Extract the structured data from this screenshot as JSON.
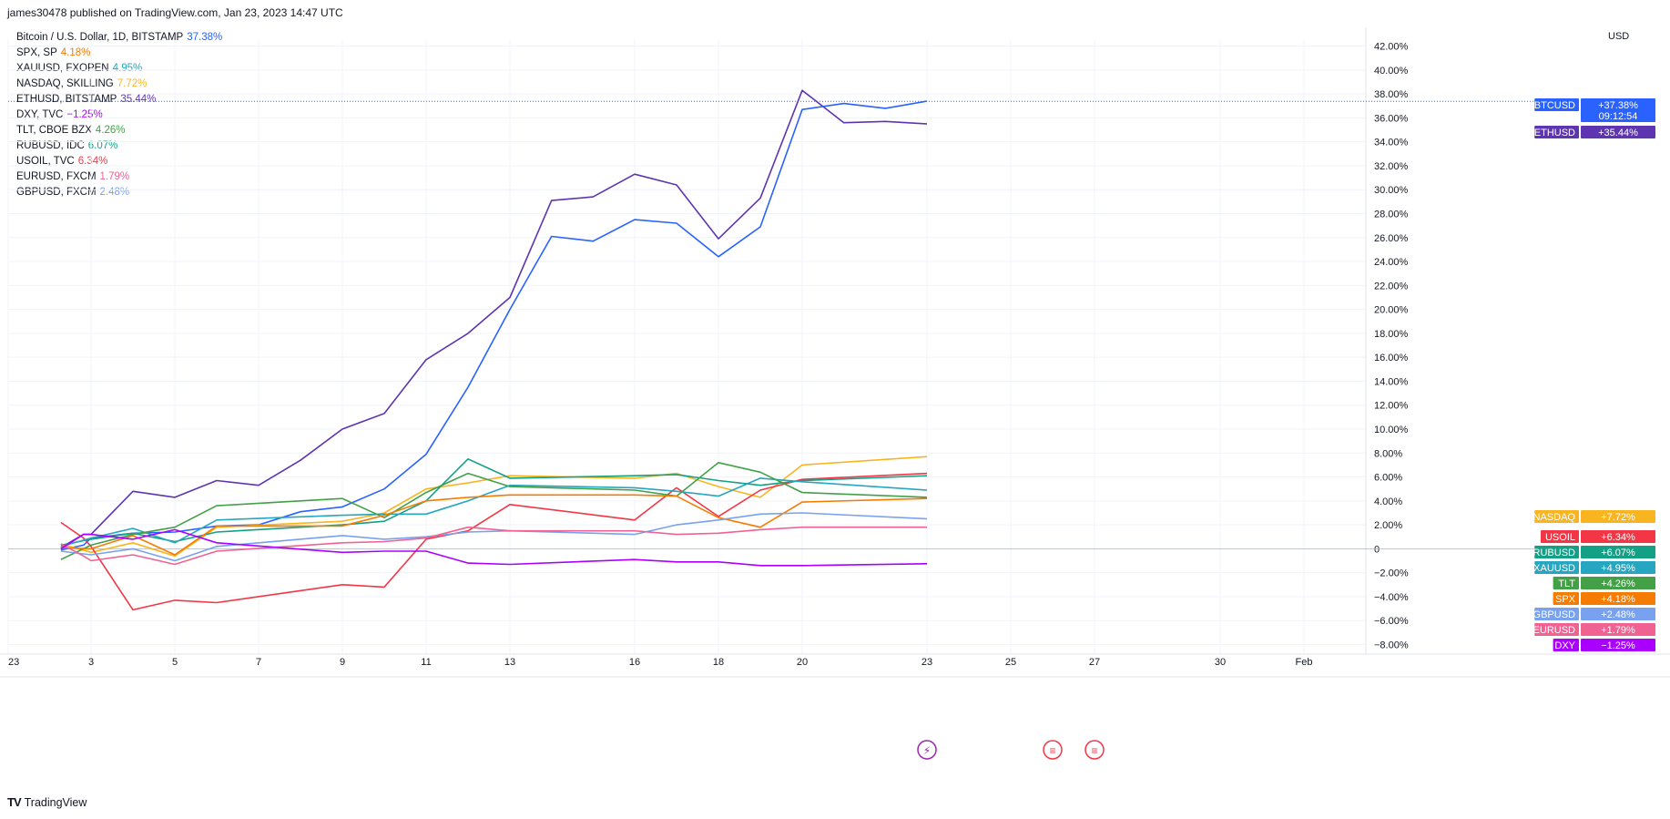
{
  "header": {
    "published": "james30478 published on TradingView.com, Jan 23, 2023 14:47 UTC"
  },
  "currency": "USD",
  "footer": {
    "brand": "TradingView",
    "logo": "TV"
  },
  "legend": [
    {
      "label": "Bitcoin / U.S. Dollar, 1D, BITSTAMP",
      "value": "37.38%",
      "color": "#2962ff"
    },
    {
      "label": "SPX, SP",
      "value": "4.18%",
      "color": "#f57c00"
    },
    {
      "label": "XAUUSD, FXOPEN",
      "value": "4.95%",
      "color": "#26a6c0"
    },
    {
      "label": "NASDAQ, SKILLING",
      "value": "7.72%",
      "color": "#f9b520"
    },
    {
      "label": "ETHUSD, BITSTAMP",
      "value": "35.44%",
      "color": "#5e35b1"
    },
    {
      "label": "DXY, TVC",
      "value": "−1.25%",
      "color": "#aa00ff"
    },
    {
      "label": "TLT, CBOE BZX",
      "value": "4.26%",
      "color": "#43a047"
    },
    {
      "label": "RUBUSD, IDC",
      "value": "6.07%",
      "color": "#14a085"
    },
    {
      "label": "USOIL, TVC",
      "value": "6.34%",
      "color": "#f23645"
    },
    {
      "label": "EURUSD, FXCM",
      "value": "1.79%",
      "color": "#f06292"
    },
    {
      "label": "GBPUSD, FXCM",
      "value": "2.48%",
      "color": "#78a1f0"
    }
  ],
  "chart_data": {
    "type": "line",
    "x": [
      "Dec 23",
      "Jan 3",
      "Jan 4",
      "Jan 5",
      "Jan 6",
      "Jan 9",
      "Jan 10",
      "Jan 11",
      "Jan 12",
      "Jan 13",
      "Jan 16",
      "Jan 17",
      "Jan 18",
      "Jan 19",
      "Jan 20",
      "Jan 23"
    ],
    "x_ticks": [
      "23",
      "3",
      "5",
      "7",
      "9",
      "11",
      "13",
      "16",
      "18",
      "20",
      "23",
      "25",
      "27",
      "30",
      "Feb"
    ],
    "y_ticks": [
      "−8.00%",
      "−6.00%",
      "−4.00%",
      "−2.00%",
      "0",
      "2.00%",
      "4.00%",
      "6.00%",
      "8.00%",
      "10.00%",
      "12.00%",
      "14.00%",
      "16.00%",
      "18.00%",
      "20.00%",
      "22.00%",
      "24.00%",
      "26.00%",
      "28.00%",
      "30.00%",
      "32.00%",
      "34.00%",
      "36.00%",
      "38.00%",
      "40.00%",
      "42.00%"
    ],
    "ylim": [
      -8.8,
      42.5
    ],
    "y_unit": "%",
    "series": [
      {
        "name": "ETHUSD",
        "color": "#5e35b1",
        "points": [
          [
            "Dec 30",
            0.1
          ],
          [
            "Jan 2",
            1.2
          ],
          [
            "Jan 3",
            1.2
          ],
          [
            "Jan 4",
            4.8
          ],
          [
            "Jan 5",
            4.3
          ],
          [
            "Jan 6",
            5.7
          ],
          [
            "Jan 7",
            5.3
          ],
          [
            "Jan 8",
            7.4
          ],
          [
            "Jan 9",
            10.0
          ],
          [
            "Jan 10",
            11.3
          ],
          [
            "Jan 11",
            15.8
          ],
          [
            "Jan 12",
            18.0
          ],
          [
            "Jan 13",
            21.0
          ],
          [
            "Jan 14",
            29.1
          ],
          [
            "Jan 15",
            29.4
          ],
          [
            "Jan 16",
            31.3
          ],
          [
            "Jan 17",
            30.4
          ],
          [
            "Jan 18",
            25.9
          ],
          [
            "Jan 19",
            29.3
          ],
          [
            "Jan 20",
            38.3
          ],
          [
            "Jan 21",
            35.6
          ],
          [
            "Jan 22",
            35.7
          ],
          [
            "Jan 23",
            35.5
          ]
        ]
      },
      {
        "name": "BTCUSD",
        "color": "#2962ff",
        "points": [
          [
            "Dec 30",
            -0.1
          ],
          [
            "Jan 2",
            0.3
          ],
          [
            "Jan 3",
            0.9
          ],
          [
            "Jan 4",
            1.3
          ],
          [
            "Jan 5",
            1.4
          ],
          [
            "Jan 6",
            1.9
          ],
          [
            "Jan 7",
            2.0
          ],
          [
            "Jan 8",
            3.1
          ],
          [
            "Jan 9",
            3.5
          ],
          [
            "Jan 10",
            5.0
          ],
          [
            "Jan 11",
            7.9
          ],
          [
            "Jan 12",
            13.5
          ],
          [
            "Jan 13",
            20.0
          ],
          [
            "Jan 14",
            26.1
          ],
          [
            "Jan 15",
            25.7
          ],
          [
            "Jan 16",
            27.5
          ],
          [
            "Jan 17",
            27.2
          ],
          [
            "Jan 18",
            24.4
          ],
          [
            "Jan 19",
            26.9
          ],
          [
            "Jan 20",
            36.7
          ],
          [
            "Jan 21",
            37.2
          ],
          [
            "Jan 22",
            36.8
          ],
          [
            "Jan 23",
            37.4
          ]
        ]
      },
      {
        "name": "NASDAQ",
        "color": "#f9b520",
        "points": [
          [
            "Dec 30",
            0.4
          ],
          [
            "Jan 3",
            -0.3
          ],
          [
            "Jan 4",
            0.5
          ],
          [
            "Jan 5",
            -0.6
          ],
          [
            "Jan 6",
            1.8
          ],
          [
            "Jan 9",
            2.3
          ],
          [
            "Jan 10",
            3.0
          ],
          [
            "Jan 11",
            5.0
          ],
          [
            "Jan 12",
            5.5
          ],
          [
            "Jan 13",
            6.1
          ],
          [
            "Jan 16",
            5.9
          ],
          [
            "Jan 17",
            6.3
          ],
          [
            "Jan 18",
            5.2
          ],
          [
            "Jan 19",
            4.3
          ],
          [
            "Jan 20",
            7.0
          ],
          [
            "Jan 23",
            7.7
          ]
        ]
      },
      {
        "name": "USOIL",
        "color": "#f23645",
        "points": [
          [
            "Dec 30",
            2.2
          ],
          [
            "Jan 2",
            0.9
          ],
          [
            "Jan 3",
            0.2
          ],
          [
            "Jan 4",
            -5.1
          ],
          [
            "Jan 5",
            -4.3
          ],
          [
            "Jan 6",
            -4.5
          ],
          [
            "Jan 9",
            -3.0
          ],
          [
            "Jan 10",
            -3.2
          ],
          [
            "Jan 11",
            0.8
          ],
          [
            "Jan 12",
            1.5
          ],
          [
            "Jan 13",
            3.7
          ],
          [
            "Jan 16",
            2.4
          ],
          [
            "Jan 17",
            5.1
          ],
          [
            "Jan 18",
            2.7
          ],
          [
            "Jan 19",
            4.9
          ],
          [
            "Jan 20",
            5.8
          ],
          [
            "Jan 23",
            6.3
          ]
        ]
      },
      {
        "name": "RUBUSD",
        "color": "#14a085",
        "points": [
          [
            "Dec 30",
            0.3
          ],
          [
            "Jan 3",
            0.8
          ],
          [
            "Jan 4",
            1.3
          ],
          [
            "Jan 5",
            0.6
          ],
          [
            "Jan 6",
            1.4
          ],
          [
            "Jan 9",
            2.0
          ],
          [
            "Jan 10",
            2.3
          ],
          [
            "Jan 11",
            4.0
          ],
          [
            "Jan 12",
            7.5
          ],
          [
            "Jan 13",
            5.9
          ],
          [
            "Jan 16",
            6.1
          ],
          [
            "Jan 17",
            6.2
          ],
          [
            "Jan 18",
            5.7
          ],
          [
            "Jan 19",
            5.3
          ],
          [
            "Jan 20",
            5.7
          ],
          [
            "Jan 23",
            6.1
          ]
        ]
      },
      {
        "name": "XAUUSD",
        "color": "#26a6c0",
        "points": [
          [
            "Dec 30",
            0.2
          ],
          [
            "Jan 3",
            0.9
          ],
          [
            "Jan 4",
            1.7
          ],
          [
            "Jan 5",
            0.5
          ],
          [
            "Jan 6",
            2.4
          ],
          [
            "Jan 9",
            2.8
          ],
          [
            "Jan 10",
            2.9
          ],
          [
            "Jan 11",
            2.9
          ],
          [
            "Jan 12",
            4.0
          ],
          [
            "Jan 13",
            5.3
          ],
          [
            "Jan 16",
            5.1
          ],
          [
            "Jan 17",
            4.8
          ],
          [
            "Jan 18",
            4.4
          ],
          [
            "Jan 19",
            5.9
          ],
          [
            "Jan 20",
            5.6
          ],
          [
            "Jan 23",
            4.9
          ]
        ]
      },
      {
        "name": "TLT",
        "color": "#43a047",
        "points": [
          [
            "Dec 30",
            -0.9
          ],
          [
            "Jan 3",
            0.3
          ],
          [
            "Jan 4",
            1.2
          ],
          [
            "Jan 5",
            1.8
          ],
          [
            "Jan 6",
            3.6
          ],
          [
            "Jan 9",
            4.2
          ],
          [
            "Jan 10",
            2.6
          ],
          [
            "Jan 11",
            4.7
          ],
          [
            "Jan 12",
            6.3
          ],
          [
            "Jan 13",
            5.2
          ],
          [
            "Jan 16",
            4.9
          ],
          [
            "Jan 17",
            4.4
          ],
          [
            "Jan 18",
            7.2
          ],
          [
            "Jan 19",
            6.4
          ],
          [
            "Jan 20",
            4.7
          ],
          [
            "Jan 23",
            4.3
          ]
        ]
      },
      {
        "name": "SPX",
        "color": "#f57c00",
        "points": [
          [
            "Dec 30",
            0.1
          ],
          [
            "Jan 3",
            0.0
          ],
          [
            "Jan 4",
            1.1
          ],
          [
            "Jan 5",
            -0.5
          ],
          [
            "Jan 6",
            1.9
          ],
          [
            "Jan 9",
            1.9
          ],
          [
            "Jan 10",
            2.8
          ],
          [
            "Jan 11",
            4.0
          ],
          [
            "Jan 12",
            4.3
          ],
          [
            "Jan 13",
            4.5
          ],
          [
            "Jan 16",
            4.5
          ],
          [
            "Jan 17",
            4.4
          ],
          [
            "Jan 18",
            2.6
          ],
          [
            "Jan 19",
            1.8
          ],
          [
            "Jan 20",
            3.9
          ],
          [
            "Jan 23",
            4.2
          ]
        ]
      },
      {
        "name": "GBPUSD",
        "color": "#78a1f0",
        "points": [
          [
            "Dec 30",
            -0.2
          ],
          [
            "Jan 3",
            -0.5
          ],
          [
            "Jan 4",
            0.0
          ],
          [
            "Jan 5",
            -1.0
          ],
          [
            "Jan 6",
            0.2
          ],
          [
            "Jan 9",
            1.1
          ],
          [
            "Jan 10",
            0.8
          ],
          [
            "Jan 11",
            1.0
          ],
          [
            "Jan 12",
            1.4
          ],
          [
            "Jan 13",
            1.5
          ],
          [
            "Jan 16",
            1.2
          ],
          [
            "Jan 17",
            2.0
          ],
          [
            "Jan 18",
            2.4
          ],
          [
            "Jan 19",
            2.9
          ],
          [
            "Jan 20",
            3.0
          ],
          [
            "Jan 23",
            2.5
          ]
        ]
      },
      {
        "name": "EURUSD",
        "color": "#f06292",
        "points": [
          [
            "Dec 30",
            0.4
          ],
          [
            "Jan 2",
            -0.6
          ],
          [
            "Jan 3",
            -1.0
          ],
          [
            "Jan 4",
            -0.5
          ],
          [
            "Jan 5",
            -1.3
          ],
          [
            "Jan 6",
            -0.2
          ],
          [
            "Jan 9",
            0.5
          ],
          [
            "Jan 10",
            0.6
          ],
          [
            "Jan 11",
            0.9
          ],
          [
            "Jan 12",
            1.8
          ],
          [
            "Jan 13",
            1.5
          ],
          [
            "Jan 16",
            1.5
          ],
          [
            "Jan 17",
            1.2
          ],
          [
            "Jan 18",
            1.3
          ],
          [
            "Jan 19",
            1.6
          ],
          [
            "Jan 20",
            1.8
          ],
          [
            "Jan 23",
            1.8
          ]
        ]
      },
      {
        "name": "DXY",
        "color": "#aa00ff",
        "points": [
          [
            "Dec 30",
            0.0
          ],
          [
            "Jan 2",
            1.2
          ],
          [
            "Jan 3",
            1.2
          ],
          [
            "Jan 4",
            0.8
          ],
          [
            "Jan 5",
            1.6
          ],
          [
            "Jan 6",
            0.5
          ],
          [
            "Jan 9",
            -0.3
          ],
          [
            "Jan 10",
            -0.2
          ],
          [
            "Jan 11",
            -0.2
          ],
          [
            "Jan 12",
            -1.2
          ],
          [
            "Jan 13",
            -1.3
          ],
          [
            "Jan 16",
            -0.9
          ],
          [
            "Jan 17",
            -1.1
          ],
          [
            "Jan 18",
            -1.1
          ],
          [
            "Jan 19",
            -1.4
          ],
          [
            "Jan 20",
            -1.4
          ],
          [
            "Jan 23",
            -1.25
          ]
        ]
      }
    ],
    "price_badges": [
      {
        "label": "BTCUSD",
        "value": "+37.38%",
        "sub": "09:12:54",
        "color": "#2962ff",
        "y": 37.38
      },
      {
        "label": "ETHUSD",
        "value": "+35.44%",
        "color": "#5e35b1",
        "y": 35.44
      },
      {
        "label": "NASDAQ",
        "value": "+7.72%",
        "color": "#f9b520",
        "y": 7.72
      },
      {
        "label": "USOIL",
        "value": "+6.34%",
        "color": "#f23645",
        "y": 6.34
      },
      {
        "label": "RUBUSD",
        "value": "+6.07%",
        "color": "#14a085",
        "y": 6.07
      },
      {
        "label": "XAUUSD",
        "value": "+4.95%",
        "color": "#26a6c0",
        "y": 4.95
      },
      {
        "label": "TLT",
        "value": "+4.26%",
        "color": "#43a047",
        "y": 4.26
      },
      {
        "label": "SPX",
        "value": "+4.18%",
        "color": "#f57c00",
        "y": 4.18
      },
      {
        "label": "GBPUSD",
        "value": "+2.48%",
        "color": "#78a1f0",
        "y": 2.48
      },
      {
        "label": "EURUSD",
        "value": "+1.79%",
        "color": "#f06292",
        "y": 1.79
      },
      {
        "label": "DXY",
        "value": "−1.25%",
        "color": "#aa00ff",
        "y": -1.25
      }
    ],
    "event_icons": [
      {
        "date": "Jan 23",
        "icon": "lightning-event-icon"
      },
      {
        "date": "Jan 26",
        "icon": "us-flag-event-icon"
      },
      {
        "date": "Jan 27",
        "icon": "us-flag-event-icon"
      }
    ],
    "grid": true
  }
}
